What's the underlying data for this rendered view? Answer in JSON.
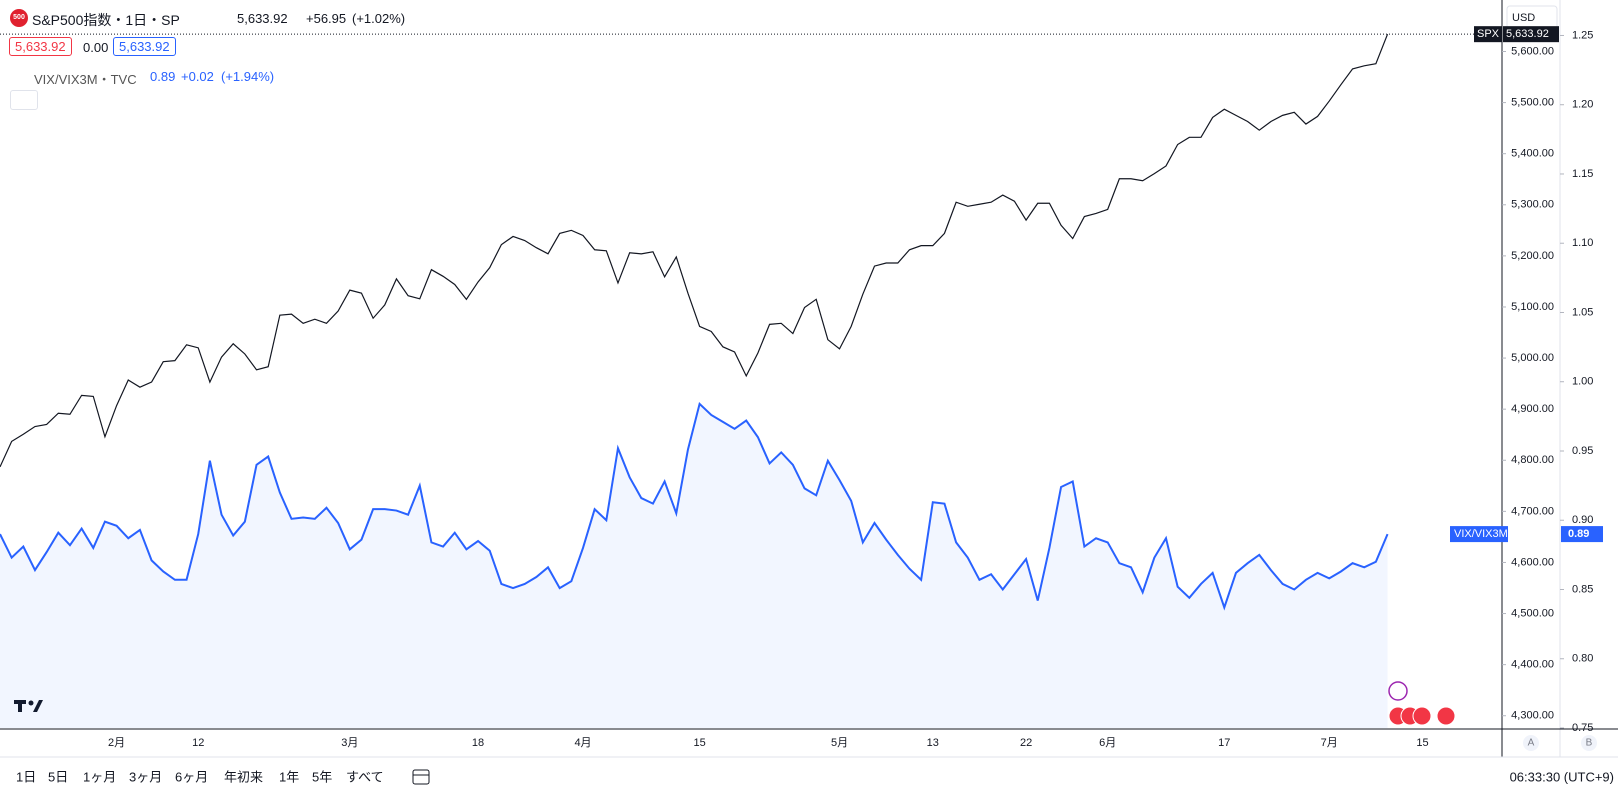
{
  "header": {
    "logo": "500",
    "symbol": "S&P500指数・1日・SP",
    "close": "5,633.92",
    "change": "+56.95",
    "change_pct": "(+1.02%)",
    "bid": "5,633.92",
    "spread": "0.00",
    "ask": "5,633.92",
    "compare_name": "VIX/VIX3M・TVC",
    "compare_last": "0.89",
    "compare_change": "+0.02",
    "compare_change_pct": "(+1.94%)",
    "currency": "USD"
  },
  "chart_data": {
    "type": "line",
    "categories": [
      null,
      null,
      null,
      null,
      null,
      null,
      null,
      null,
      null,
      null,
      "2月",
      null,
      null,
      null,
      null,
      null,
      null,
      "12",
      null,
      null,
      null,
      null,
      null,
      null,
      null,
      null,
      null,
      null,
      null,
      null,
      "3月",
      null,
      null,
      null,
      null,
      null,
      null,
      null,
      null,
      null,
      null,
      "18",
      null,
      null,
      null,
      null,
      null,
      null,
      null,
      null,
      "4月",
      null,
      null,
      null,
      null,
      null,
      null,
      null,
      null,
      null,
      "15",
      null,
      null,
      null,
      null,
      null,
      null,
      null,
      null,
      null,
      null,
      null,
      "5月",
      null,
      null,
      null,
      null,
      null,
      null,
      null,
      "13",
      null,
      null,
      null,
      null,
      null,
      null,
      null,
      "22",
      null,
      null,
      null,
      null,
      null,
      null,
      "6月",
      null,
      null,
      null,
      null,
      null,
      null,
      null,
      null,
      null,
      "17",
      null,
      null,
      null,
      null,
      null,
      null,
      null,
      null,
      "7月",
      null,
      null,
      null,
      null,
      null,
      null,
      null,
      "15"
    ],
    "series": [
      {
        "name": "SPX",
        "color": "#131722",
        "last_label": "5,633.92",
        "values": [
          4787,
          4837,
          4851,
          4866,
          4870,
          4892,
          4890,
          4927,
          4925,
          4846,
          4907,
          4957,
          4943,
          4953,
          4993,
          4995,
          5026,
          5020,
          4953,
          5002,
          5028,
          5008,
          4977,
          4983,
          5084,
          5086,
          5068,
          5076,
          5068,
          5092,
          5133,
          5127,
          5078,
          5104,
          5155,
          5122,
          5116,
          5173,
          5160,
          5144,
          5115,
          5149,
          5177,
          5222,
          5238,
          5230,
          5216,
          5204,
          5244,
          5250,
          5240,
          5212,
          5210,
          5147,
          5206,
          5204,
          5208,
          5159,
          5198,
          5127,
          5062,
          5052,
          5022,
          5012,
          4965,
          5010,
          5066,
          5068,
          5048,
          5099,
          5115,
          5036,
          5018,
          5062,
          5125,
          5180,
          5186,
          5186,
          5212,
          5220,
          5220,
          5244,
          5305,
          5297,
          5301,
          5305,
          5319,
          5307,
          5270,
          5303,
          5303,
          5260,
          5234,
          5277,
          5283,
          5291,
          5351,
          5351,
          5347,
          5361,
          5376,
          5418,
          5432,
          5432,
          5471,
          5487,
          5475,
          5463,
          5446,
          5463,
          5475,
          5481,
          5458,
          5473,
          5503,
          5535,
          5566,
          5572,
          5576,
          5633.92,
          null,
          null,
          null
        ]
      },
      {
        "name": "VIX/VIX3M",
        "color": "#2962ff",
        "axis": "y2",
        "values": [
          0.89,
          0.873,
          0.881,
          0.864,
          0.877,
          0.891,
          0.882,
          0.894,
          0.88,
          0.899,
          0.896,
          0.887,
          0.893,
          0.871,
          0.863,
          0.857,
          0.857,
          0.89,
          0.943,
          0.904,
          0.889,
          0.899,
          0.94,
          0.946,
          0.92,
          0.901,
          0.902,
          0.901,
          0.909,
          0.898,
          0.879,
          0.886,
          0.908,
          0.908,
          0.907,
          0.904,
          0.925,
          0.884,
          0.881,
          0.891,
          0.879,
          0.885,
          0.878,
          0.854,
          0.851,
          0.854,
          0.859,
          0.866,
          0.851,
          0.856,
          0.88,
          0.908,
          0.9,
          0.952,
          0.931,
          0.916,
          0.912,
          0.928,
          0.905,
          0.951,
          0.984,
          0.976,
          0.971,
          0.966,
          0.972,
          0.96,
          0.941,
          0.949,
          0.94,
          0.923,
          0.918,
          0.943,
          0.929,
          0.914,
          0.884,
          0.898,
          0.886,
          0.875,
          0.865,
          0.857,
          0.913,
          0.912,
          0.884,
          0.873,
          0.857,
          0.861,
          0.85,
          0.861,
          0.872,
          0.842,
          0.88,
          0.924,
          0.928,
          0.881,
          0.887,
          0.884,
          0.869,
          0.866,
          0.848,
          0.873,
          0.887,
          0.852,
          0.844,
          0.854,
          0.862,
          0.837,
          0.862,
          0.869,
          0.875,
          0.864,
          0.854,
          0.85,
          0.857,
          0.862,
          0.858,
          0.863,
          0.869,
          0.866,
          0.87,
          0.89,
          null,
          null,
          null
        ]
      }
    ],
    "ylim": [
      4276,
      5691
    ],
    "yticks": [
      {
        "value": 4300,
        "label": "4,300.00"
      },
      {
        "value": 4400,
        "label": "4,400.00"
      },
      {
        "value": 4500,
        "label": "4,500.00"
      },
      {
        "value": 4600,
        "label": "4,600.00"
      },
      {
        "value": 4700,
        "label": "4,700.00"
      },
      {
        "value": 4800,
        "label": "4,800.00"
      },
      {
        "value": 4900,
        "label": "4,900.00"
      },
      {
        "value": 5000,
        "label": "5,000.00"
      },
      {
        "value": 5100,
        "label": "5,100.00"
      },
      {
        "value": 5200,
        "label": "5,200.00"
      },
      {
        "value": 5300,
        "label": "5,300.00"
      },
      {
        "value": 5400,
        "label": "5,400.00"
      },
      {
        "value": 5500,
        "label": "5,500.00"
      },
      {
        "value": 5600,
        "label": "5,600.00"
      }
    ],
    "y2lim": [
      0.75,
      1.272
    ],
    "y2ticks": [
      {
        "value": 0.75,
        "label": "0.75"
      },
      {
        "value": 0.8,
        "label": "0.80"
      },
      {
        "value": 0.85,
        "label": "0.85"
      },
      {
        "value": 0.9,
        "label": "0.90"
      },
      {
        "value": 0.95,
        "label": "0.95"
      },
      {
        "value": 1.0,
        "label": "1.00"
      },
      {
        "value": 1.05,
        "label": "1.05"
      },
      {
        "value": 1.1,
        "label": "1.10"
      },
      {
        "value": 1.15,
        "label": "1.15"
      },
      {
        "value": 1.2,
        "label": "1.20"
      },
      {
        "value": 1.25,
        "label": "1.25"
      }
    ],
    "axis_buttons": [
      "A",
      "B"
    ]
  },
  "toolbar": {
    "ranges": [
      "1日",
      "5日",
      "1ヶ月",
      "3ヶ月",
      "6ヶ月",
      "年初来",
      "1年",
      "5年",
      "すべて"
    ],
    "clock": "06:33:30 (UTC+9)"
  }
}
